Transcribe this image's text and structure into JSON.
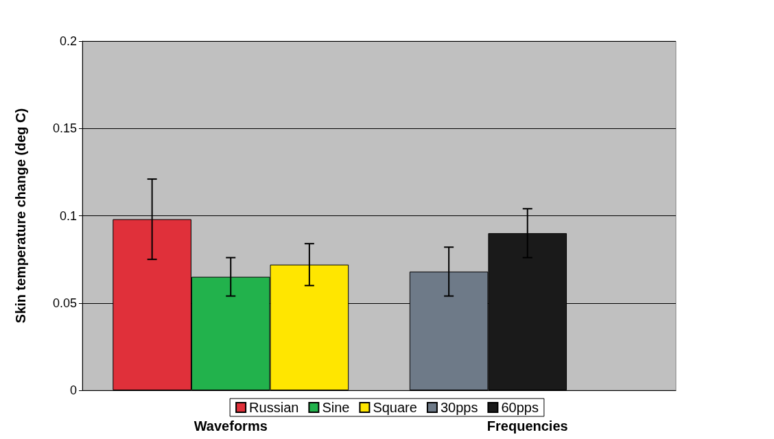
{
  "chart_data": {
    "type": "bar",
    "ylabel": "Skin temperature change (deg C)",
    "categories": [
      "Waveforms",
      "Frequencies"
    ],
    "series": [
      {
        "name": "Russian",
        "color": "#e0303a",
        "values": [
          0.098,
          null
        ],
        "errors": [
          0.023,
          null
        ]
      },
      {
        "name": "Sine",
        "color": "#22b24c",
        "values": [
          0.065,
          null
        ],
        "errors": [
          0.011,
          null
        ]
      },
      {
        "name": "Square",
        "color": "#ffe600",
        "values": [
          0.072,
          null
        ],
        "errors": [
          0.012,
          null
        ]
      },
      {
        "name": "30pps",
        "color": "#6e7a88",
        "values": [
          null,
          0.068
        ],
        "errors": [
          null,
          0.014
        ]
      },
      {
        "name": "60pps",
        "color": "#1a1a1a",
        "values": [
          null,
          0.09
        ],
        "errors": [
          null,
          0.014
        ]
      }
    ],
    "ylim": [
      0,
      0.2
    ],
    "yticks": [
      0,
      0.05,
      0.1,
      0.15,
      0.2
    ],
    "grid": "y",
    "legend": "bottom"
  }
}
